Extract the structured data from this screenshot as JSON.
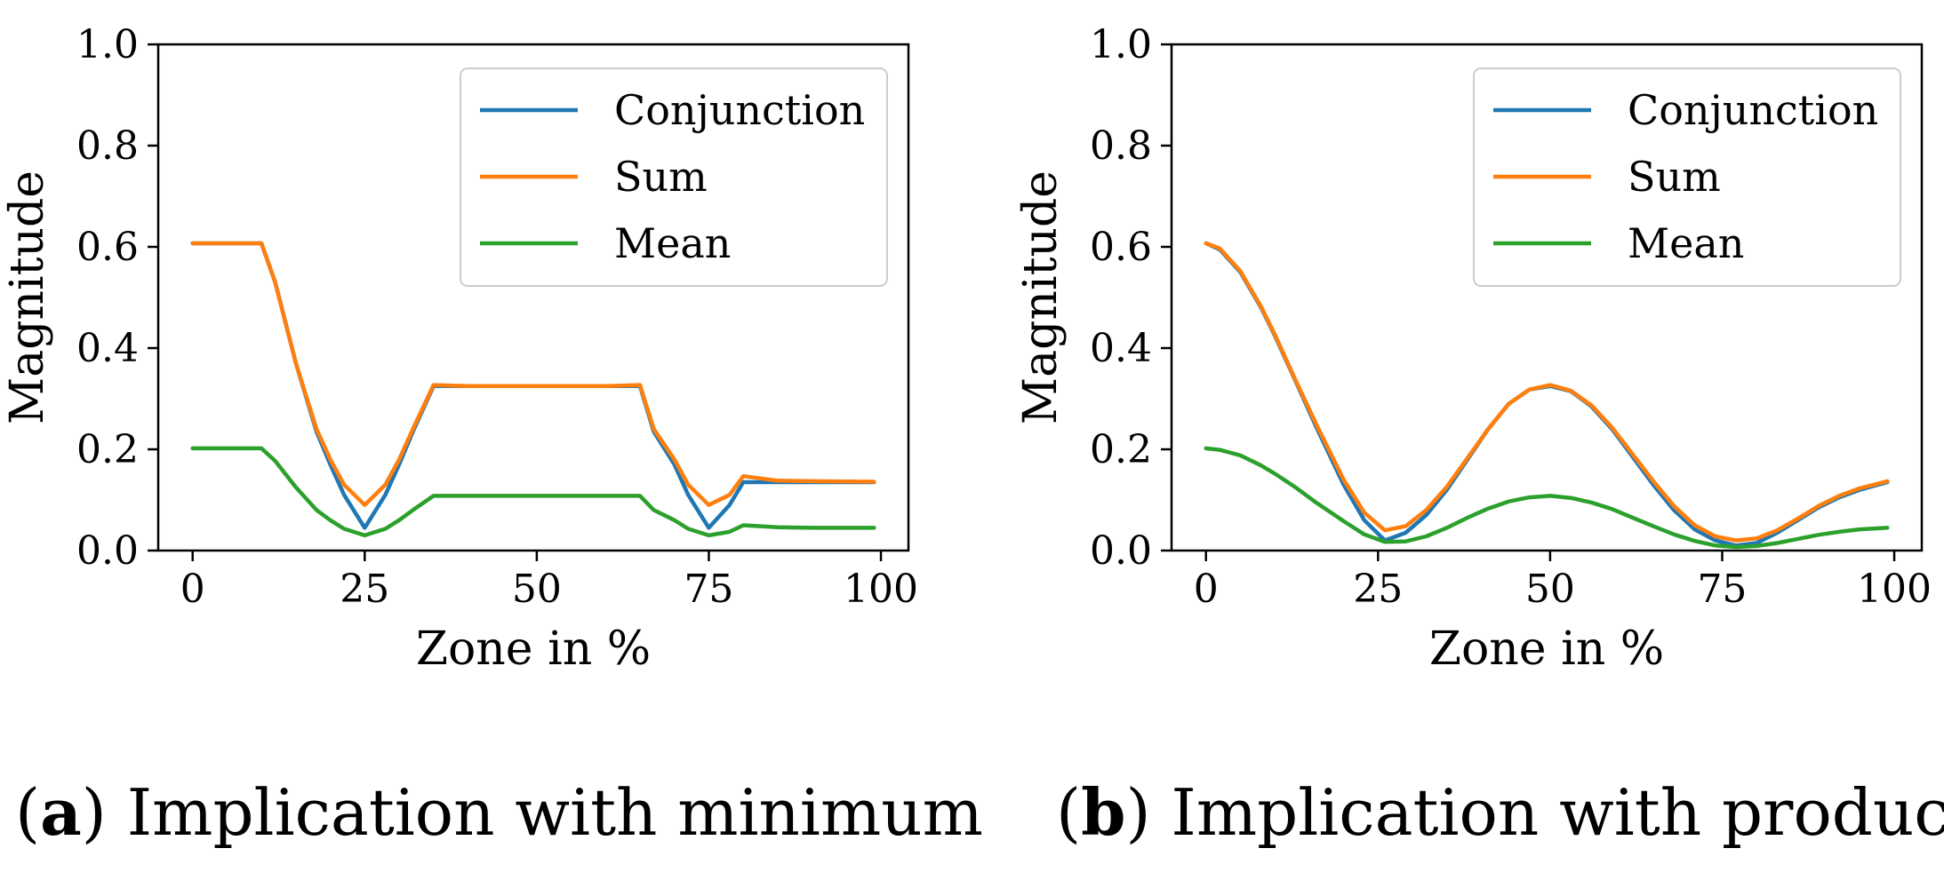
{
  "figure": {
    "panels": [
      {
        "tag": "a",
        "caption": "Implication with minimum"
      },
      {
        "tag": "b",
        "caption": "Implication with product"
      }
    ]
  },
  "colors": {
    "Conjunction": "#1f77b4",
    "Sum": "#ff7f0e",
    "Mean": "#2ca02c"
  },
  "chart_data": [
    {
      "type": "line",
      "title": "",
      "xlabel": "Zone in %",
      "ylabel": "Magnitude",
      "xlim": [
        -5,
        104
      ],
      "ylim": [
        0.0,
        1.0
      ],
      "xticks": [
        0,
        25,
        50,
        75,
        100
      ],
      "xtick_labels": [
        "0",
        "25",
        "50",
        "75",
        "100"
      ],
      "yticks": [
        0.0,
        0.2,
        0.4,
        0.6,
        0.8,
        1.0
      ],
      "ytick_labels": [
        "0.0",
        "0.2",
        "0.4",
        "0.6",
        "0.8",
        "1.0"
      ],
      "legend": "top-right",
      "grid": false,
      "series": [
        {
          "name": "Conjunction",
          "x": [
            0,
            10,
            12,
            15,
            18,
            20,
            22,
            25,
            28,
            30,
            32,
            35,
            40,
            50,
            60,
            65,
            67,
            70,
            72,
            75,
            78,
            80,
            85,
            90,
            99
          ],
          "y": [
            0.607,
            0.607,
            0.53,
            0.37,
            0.235,
            0.17,
            0.11,
            0.045,
            0.11,
            0.17,
            0.235,
            0.325,
            0.325,
            0.325,
            0.325,
            0.325,
            0.235,
            0.17,
            0.11,
            0.045,
            0.09,
            0.135,
            0.135,
            0.135,
            0.135
          ]
        },
        {
          "name": "Sum",
          "x": [
            0,
            10,
            12,
            15,
            18,
            20,
            22,
            25,
            28,
            30,
            32,
            35,
            40,
            50,
            60,
            65,
            67,
            70,
            72,
            75,
            78,
            80,
            85,
            90,
            99
          ],
          "y": [
            0.607,
            0.607,
            0.53,
            0.37,
            0.24,
            0.18,
            0.13,
            0.09,
            0.13,
            0.18,
            0.24,
            0.327,
            0.325,
            0.325,
            0.325,
            0.327,
            0.24,
            0.18,
            0.13,
            0.09,
            0.11,
            0.147,
            0.138,
            0.137,
            0.136
          ]
        },
        {
          "name": "Mean",
          "x": [
            0,
            10,
            12,
            15,
            18,
            20,
            22,
            25,
            28,
            30,
            32,
            35,
            40,
            50,
            60,
            65,
            67,
            70,
            72,
            75,
            78,
            80,
            85,
            90,
            99
          ],
          "y": [
            0.202,
            0.202,
            0.177,
            0.125,
            0.08,
            0.06,
            0.043,
            0.03,
            0.043,
            0.06,
            0.08,
            0.108,
            0.108,
            0.108,
            0.108,
            0.108,
            0.08,
            0.06,
            0.043,
            0.03,
            0.037,
            0.05,
            0.046,
            0.045,
            0.045
          ]
        }
      ]
    },
    {
      "type": "line",
      "title": "",
      "xlabel": "Zone in %",
      "ylabel": "Magnitude",
      "xlim": [
        -5,
        104
      ],
      "ylim": [
        0.0,
        1.0
      ],
      "xticks": [
        0,
        25,
        50,
        75,
        100
      ],
      "xtick_labels": [
        "0",
        "25",
        "50",
        "75",
        "100"
      ],
      "yticks": [
        0.0,
        0.2,
        0.4,
        0.6,
        0.8,
        1.0
      ],
      "ytick_labels": [
        "0.0",
        "0.2",
        "0.4",
        "0.6",
        "0.8",
        "1.0"
      ],
      "legend": "top-right",
      "grid": false,
      "series": [
        {
          "name": "Conjunction",
          "x": [
            0,
            2,
            5,
            8,
            10,
            13,
            16,
            20,
            23,
            26,
            29,
            32,
            35,
            38,
            41,
            44,
            47,
            50,
            53,
            56,
            59,
            62,
            65,
            68,
            71,
            74,
            77,
            80,
            83,
            86,
            89,
            92,
            95,
            99
          ],
          "y": [
            0.607,
            0.595,
            0.55,
            0.48,
            0.425,
            0.335,
            0.245,
            0.13,
            0.06,
            0.02,
            0.035,
            0.07,
            0.12,
            0.18,
            0.24,
            0.29,
            0.318,
            0.325,
            0.315,
            0.285,
            0.24,
            0.185,
            0.13,
            0.08,
            0.042,
            0.02,
            0.01,
            0.015,
            0.035,
            0.06,
            0.085,
            0.105,
            0.12,
            0.135
          ]
        },
        {
          "name": "Sum",
          "x": [
            0,
            2,
            5,
            8,
            10,
            13,
            16,
            20,
            23,
            26,
            29,
            32,
            35,
            38,
            41,
            44,
            47,
            50,
            53,
            56,
            59,
            62,
            65,
            68,
            71,
            74,
            77,
            80,
            83,
            86,
            89,
            92,
            95,
            99
          ],
          "y": [
            0.607,
            0.597,
            0.552,
            0.482,
            0.427,
            0.337,
            0.25,
            0.14,
            0.075,
            0.04,
            0.048,
            0.08,
            0.126,
            0.183,
            0.24,
            0.29,
            0.318,
            0.327,
            0.316,
            0.287,
            0.243,
            0.19,
            0.137,
            0.088,
            0.05,
            0.028,
            0.02,
            0.024,
            0.04,
            0.063,
            0.088,
            0.108,
            0.123,
            0.137
          ]
        },
        {
          "name": "Mean",
          "x": [
            0,
            2,
            5,
            8,
            10,
            13,
            16,
            20,
            23,
            26,
            29,
            32,
            35,
            38,
            41,
            44,
            47,
            50,
            53,
            56,
            59,
            62,
            65,
            68,
            71,
            74,
            77,
            80,
            83,
            86,
            89,
            92,
            95,
            99
          ],
          "y": [
            0.202,
            0.199,
            0.188,
            0.168,
            0.152,
            0.125,
            0.095,
            0.058,
            0.032,
            0.017,
            0.018,
            0.028,
            0.045,
            0.065,
            0.083,
            0.097,
            0.105,
            0.108,
            0.104,
            0.095,
            0.082,
            0.065,
            0.048,
            0.032,
            0.019,
            0.01,
            0.007,
            0.009,
            0.015,
            0.023,
            0.031,
            0.037,
            0.042,
            0.045
          ]
        }
      ]
    }
  ]
}
